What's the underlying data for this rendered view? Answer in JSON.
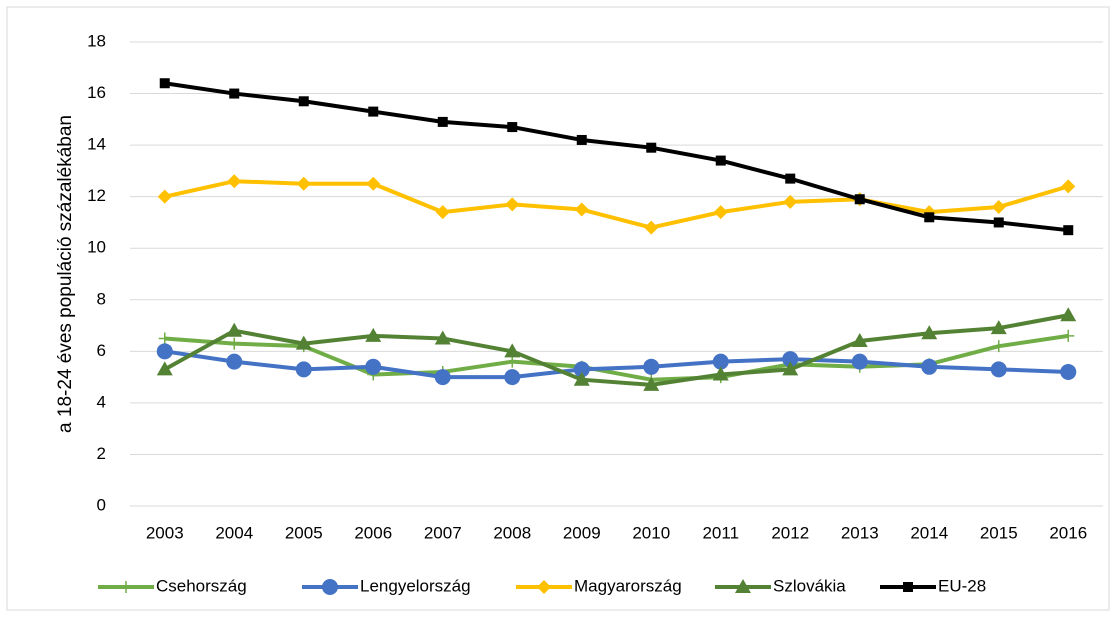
{
  "chart_data": {
    "type": "line",
    "y_label": "a 18-24 éves populáció százalékában",
    "categories": [
      "2003",
      "2004",
      "2005",
      "2006",
      "2007",
      "2008",
      "2009",
      "2010",
      "2011",
      "2012",
      "2013",
      "2014",
      "2015",
      "2016"
    ],
    "series": [
      {
        "name": "Csehország",
        "color": "#70ad47",
        "marker": "plus",
        "values": [
          6.5,
          6.3,
          6.2,
          5.1,
          5.2,
          5.6,
          5.4,
          4.9,
          5.0,
          5.5,
          5.4,
          5.5,
          6.2,
          6.6
        ]
      },
      {
        "name": "Lengyelország",
        "color": "#4472c4",
        "marker": "circle",
        "values": [
          6.0,
          5.6,
          5.3,
          5.4,
          5.0,
          5.0,
          5.3,
          5.4,
          5.6,
          5.7,
          5.6,
          5.4,
          5.3,
          5.2
        ]
      },
      {
        "name": "Magyarország",
        "color": "#ffc000",
        "marker": "diamond",
        "values": [
          12.0,
          12.6,
          12.5,
          12.5,
          11.4,
          11.7,
          11.5,
          10.8,
          11.4,
          11.8,
          11.9,
          11.4,
          11.6,
          12.4
        ]
      },
      {
        "name": "Szlovákia",
        "color": "#548235",
        "marker": "triangle",
        "values": [
          5.3,
          6.8,
          6.3,
          6.6,
          6.5,
          6.0,
          4.9,
          4.7,
          5.1,
          5.3,
          6.4,
          6.7,
          6.9,
          7.4
        ]
      },
      {
        "name": "EU-28",
        "color": "#000000",
        "marker": "square",
        "values": [
          16.4,
          16.0,
          15.7,
          15.3,
          14.9,
          14.7,
          14.2,
          13.9,
          13.4,
          12.7,
          11.9,
          11.2,
          11.0,
          10.7
        ]
      }
    ],
    "ylim": [
      0,
      18
    ],
    "yticks": [
      0,
      2,
      4,
      6,
      8,
      10,
      12,
      14,
      16,
      18
    ],
    "grid": true,
    "legend": "bottom"
  }
}
